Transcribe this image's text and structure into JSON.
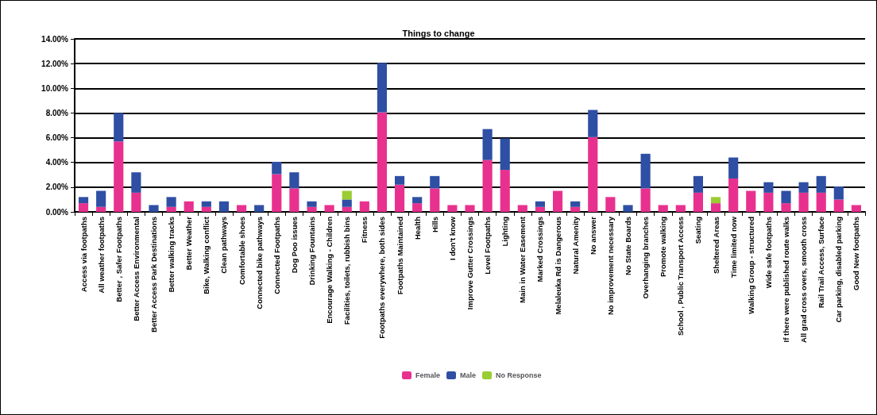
{
  "chart_data": {
    "type": "bar",
    "title": "Things to change",
    "stacked": true,
    "categories": [
      "Access via footpaths",
      "All weather footpaths",
      "Better , Safer Footpaths",
      "Better Access Environmental",
      "Better Access Park Destinations",
      "Better walking tracks",
      "Better Weather",
      "Bike, Walking conflict",
      "Clean pathways",
      "Comfortable shoes",
      "Connected bike pathways",
      "Connected Footpaths",
      "Dog Poo issues",
      "Drinking Fountains",
      "Encourage Walking - Children",
      "Facilities, toilets, rubbish bins",
      "Fitness",
      "Footpaths everywhere, both sides",
      "Footpaths Maintained",
      "Health",
      "Hills",
      "I don't know",
      "Improve Gutter Crossings",
      "Level Footpaths",
      "Lighting",
      "Main in Water Easement",
      "Marked Crossings",
      "Melaleuka Rd is Dangerous",
      "Natural Amenity",
      "No answer",
      "No improvement necessary",
      "No State Boards",
      "Overhanging branches",
      "Promote walking",
      "School , Public Transport Access",
      "Seating",
      "Sheltered Areas",
      "Time limited now",
      "Walking Group - structured",
      "Wide safe footpaths",
      "If there were published route walks",
      "All grad cross overs, smooth cross",
      "Rail Trail Access, Surface",
      "Car parking, disabled parking",
      "Good New footpaths"
    ],
    "series": [
      {
        "name": "Female",
        "color": "#e8318f",
        "values": [
          0.7,
          0.4,
          5.7,
          1.55,
          0,
          0.4,
          0.85,
          0.4,
          0,
          0.55,
          0,
          3.05,
          1.9,
          0.4,
          0.55,
          0.4,
          0.85,
          8.05,
          2.2,
          0.7,
          1.9,
          0.55,
          0.55,
          4.2,
          3.4,
          0.55,
          0.4,
          1.7,
          0.4,
          6.05,
          1.2,
          0,
          1.9,
          0.55,
          0.55,
          1.55,
          0.7,
          2.7,
          1.7,
          1.55,
          0.7,
          1.55,
          1.55,
          1.0,
          0.55
        ]
      },
      {
        "name": "Male",
        "color": "#2e4fa3",
        "values": [
          0.5,
          1.3,
          2.3,
          1.65,
          0.55,
          0.8,
          0,
          0.45,
          0.85,
          0,
          0.55,
          1.0,
          1.3,
          0.45,
          0,
          0.6,
          0,
          4.0,
          0.7,
          0.5,
          1.0,
          0,
          0,
          2.5,
          2.55,
          0,
          0.45,
          0,
          0.45,
          2.2,
          0,
          0.55,
          2.8,
          0,
          0,
          1.35,
          0,
          1.7,
          0,
          0.85,
          1.0,
          0.85,
          1.35,
          1.05,
          0
        ]
      },
      {
        "name": "No Response",
        "color": "#9acd32",
        "values": [
          0,
          0,
          0,
          0,
          0,
          0,
          0,
          0,
          0,
          0,
          0,
          0,
          0,
          0,
          0,
          0.7,
          0,
          0,
          0,
          0,
          0,
          0,
          0,
          0,
          0,
          0,
          0,
          0,
          0,
          0,
          0,
          0,
          0,
          0,
          0,
          0,
          0.5,
          0,
          0,
          0,
          0,
          0,
          0,
          0,
          0
        ]
      }
    ],
    "ylim": [
      0,
      14
    ],
    "yticks": [
      {
        "value": 0,
        "label": "0.00%"
      },
      {
        "value": 2,
        "label": "2.00%"
      },
      {
        "value": 4,
        "label": "4.00%"
      },
      {
        "value": 6,
        "label": "6.00%"
      },
      {
        "value": 8,
        "label": "8.00%"
      },
      {
        "value": 10,
        "label": "10.00%"
      },
      {
        "value": 12,
        "label": "12.00%"
      },
      {
        "value": 14,
        "label": "14.00%"
      }
    ],
    "grid": "y",
    "legend": "bottom"
  }
}
